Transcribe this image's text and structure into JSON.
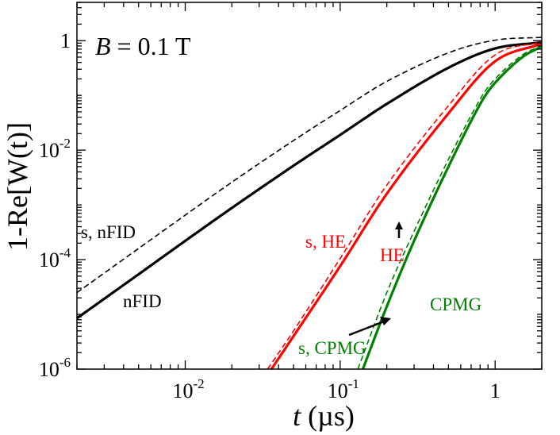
{
  "chart_data": {
    "type": "line",
    "title": "",
    "xlabel_var": "t",
    "xlabel_unit": " (µs)",
    "ylabel": "1-Re[W(t)]",
    "xscale": "log",
    "yscale": "log",
    "xlim": [
      0.002,
      2.0
    ],
    "ylim": [
      1e-06,
      5
    ],
    "grid": false,
    "x_ticks": [
      {
        "base": "10",
        "exp": "-2",
        "value": 0.01
      },
      {
        "base": "10",
        "exp": "-1",
        "value": 0.1
      },
      {
        "base": "1",
        "exp": "",
        "value": 1
      }
    ],
    "y_ticks": [
      {
        "base": "10",
        "exp": "-6",
        "value": 1e-06
      },
      {
        "base": "10",
        "exp": "-4",
        "value": 0.0001
      },
      {
        "base": "10",
        "exp": "-2",
        "value": 0.01
      },
      {
        "base": "1",
        "exp": "",
        "value": 1
      }
    ],
    "field_label": {
      "var": "B",
      "rest": " = 0.1 T"
    },
    "series": [
      {
        "name": "s, nFID",
        "color": "#000000",
        "style": "dashed",
        "width": 1.6,
        "x": [
          0.002,
          0.005,
          0.01,
          0.02,
          0.05,
          0.1,
          0.2,
          0.5,
          1.0,
          2.0
        ],
        "y": [
          2.5e-05,
          0.00016,
          0.00065,
          0.0026,
          0.015,
          0.053,
          0.18,
          0.6,
          1.02,
          1.15
        ]
      },
      {
        "name": "nFID",
        "color": "#000000",
        "style": "solid",
        "width": 3.2,
        "x": [
          0.002,
          0.005,
          0.01,
          0.02,
          0.05,
          0.1,
          0.2,
          0.5,
          1.0,
          2.0
        ],
        "y": [
          8.5e-06,
          5.4e-05,
          0.00022,
          0.00088,
          0.0052,
          0.019,
          0.07,
          0.32,
          0.72,
          0.93
        ]
      },
      {
        "name": "s, HE",
        "color": "#ff0000",
        "style": "dashed",
        "width": 1.6,
        "x": [
          0.034,
          0.05,
          0.1,
          0.2,
          0.5,
          1.0,
          2.0
        ],
        "y": [
          1e-06,
          5e-06,
          0.000105,
          0.0023,
          0.065,
          0.55,
          0.95
        ]
      },
      {
        "name": "HE",
        "color": "#ff0000",
        "style": "solid",
        "width": 3.2,
        "x": [
          0.036,
          0.05,
          0.1,
          0.2,
          0.5,
          1.0,
          2.0
        ],
        "y": [
          1e-06,
          4e-06,
          7.6e-05,
          0.0016,
          0.047,
          0.42,
          0.88
        ]
      },
      {
        "name": "s, CPMG",
        "color": "#008000",
        "style": "dashed",
        "width": 1.6,
        "x": [
          0.13,
          0.2,
          0.3,
          0.5,
          0.8,
          1.0,
          1.5,
          2.0
        ],
        "y": [
          1e-06,
          2.5e-05,
          0.00033,
          0.0068,
          0.085,
          0.2,
          0.55,
          0.8
        ]
      },
      {
        "name": "CPMG",
        "color": "#008000",
        "style": "solid",
        "width": 3.2,
        "x": [
          0.14,
          0.2,
          0.3,
          0.5,
          0.8,
          1.0,
          1.5,
          2.0
        ],
        "y": [
          1e-06,
          1.4e-05,
          0.00022,
          0.005,
          0.069,
          0.17,
          0.5,
          0.78
        ]
      }
    ],
    "annotations": [
      {
        "text": "s, nFID",
        "color": "#000000"
      },
      {
        "text": "nFID",
        "color": "#000000"
      },
      {
        "text": "s, HE",
        "color": "#ff0000"
      },
      {
        "text": "HE",
        "color": "#ff0000"
      },
      {
        "text": "CPMG",
        "color": "#008000"
      },
      {
        "text": "s, CPMG",
        "color": "#008000"
      }
    ]
  }
}
